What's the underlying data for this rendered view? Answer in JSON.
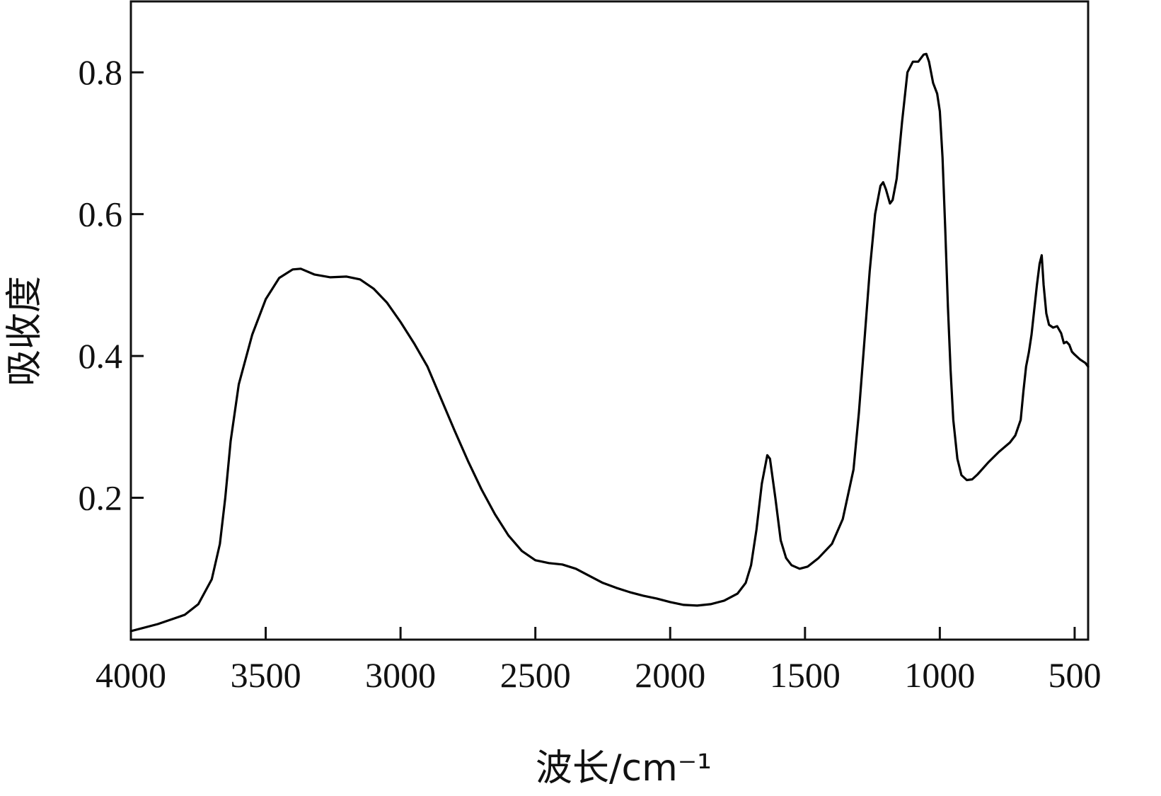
{
  "chart_data": {
    "type": "line",
    "title": "",
    "xlabel": "波长/cm⁻¹",
    "ylabel": "吸收度",
    "xlim": [
      4000,
      450
    ],
    "ylim": [
      0,
      0.9
    ],
    "x_reversed": true,
    "grid": false,
    "x_ticks": [
      4000,
      3500,
      3000,
      2500,
      2000,
      1500,
      1000,
      500
    ],
    "y_ticks": [
      0.2,
      0.4,
      0.6,
      0.8
    ],
    "x_tick_labels": [
      "4000",
      "3500",
      "3000",
      "2500",
      "2000",
      "1500",
      "1000",
      "500"
    ],
    "y_tick_labels": [
      "0.2",
      "0.4",
      "0.6",
      "0.8"
    ],
    "series": [
      {
        "color": "#000000",
        "points": [
          [
            4000,
            0.012
          ],
          [
            3900,
            0.022
          ],
          [
            3800,
            0.035
          ],
          [
            3750,
            0.05
          ],
          [
            3700,
            0.085
          ],
          [
            3670,
            0.135
          ],
          [
            3650,
            0.2
          ],
          [
            3630,
            0.28
          ],
          [
            3600,
            0.36
          ],
          [
            3550,
            0.43
          ],
          [
            3500,
            0.48
          ],
          [
            3450,
            0.51
          ],
          [
            3400,
            0.522
          ],
          [
            3370,
            0.523
          ],
          [
            3320,
            0.515
          ],
          [
            3260,
            0.511
          ],
          [
            3200,
            0.512
          ],
          [
            3150,
            0.508
          ],
          [
            3100,
            0.495
          ],
          [
            3050,
            0.475
          ],
          [
            3000,
            0.448
          ],
          [
            2950,
            0.418
          ],
          [
            2900,
            0.385
          ],
          [
            2850,
            0.34
          ],
          [
            2800,
            0.295
          ],
          [
            2750,
            0.252
          ],
          [
            2700,
            0.212
          ],
          [
            2650,
            0.177
          ],
          [
            2600,
            0.147
          ],
          [
            2550,
            0.125
          ],
          [
            2500,
            0.112
          ],
          [
            2450,
            0.108
          ],
          [
            2400,
            0.106
          ],
          [
            2350,
            0.1
          ],
          [
            2300,
            0.09
          ],
          [
            2250,
            0.08
          ],
          [
            2200,
            0.073
          ],
          [
            2150,
            0.067
          ],
          [
            2100,
            0.062
          ],
          [
            2050,
            0.058
          ],
          [
            2000,
            0.053
          ],
          [
            1950,
            0.049
          ],
          [
            1900,
            0.048
          ],
          [
            1850,
            0.05
          ],
          [
            1800,
            0.055
          ],
          [
            1750,
            0.065
          ],
          [
            1720,
            0.08
          ],
          [
            1700,
            0.105
          ],
          [
            1680,
            0.155
          ],
          [
            1660,
            0.22
          ],
          [
            1640,
            0.26
          ],
          [
            1630,
            0.255
          ],
          [
            1610,
            0.2
          ],
          [
            1590,
            0.14
          ],
          [
            1570,
            0.115
          ],
          [
            1550,
            0.105
          ],
          [
            1520,
            0.1
          ],
          [
            1490,
            0.103
          ],
          [
            1450,
            0.115
          ],
          [
            1400,
            0.135
          ],
          [
            1360,
            0.17
          ],
          [
            1320,
            0.24
          ],
          [
            1300,
            0.32
          ],
          [
            1280,
            0.42
          ],
          [
            1260,
            0.52
          ],
          [
            1240,
            0.6
          ],
          [
            1220,
            0.64
          ],
          [
            1210,
            0.645
          ],
          [
            1200,
            0.635
          ],
          [
            1185,
            0.615
          ],
          [
            1175,
            0.62
          ],
          [
            1160,
            0.65
          ],
          [
            1140,
            0.73
          ],
          [
            1120,
            0.8
          ],
          [
            1100,
            0.815
          ],
          [
            1080,
            0.815
          ],
          [
            1060,
            0.825
          ],
          [
            1050,
            0.826
          ],
          [
            1040,
            0.815
          ],
          [
            1025,
            0.785
          ],
          [
            1010,
            0.77
          ],
          [
            1000,
            0.745
          ],
          [
            990,
            0.68
          ],
          [
            980,
            0.58
          ],
          [
            970,
            0.47
          ],
          [
            960,
            0.38
          ],
          [
            950,
            0.31
          ],
          [
            935,
            0.255
          ],
          [
            920,
            0.232
          ],
          [
            900,
            0.225
          ],
          [
            880,
            0.226
          ],
          [
            860,
            0.233
          ],
          [
            820,
            0.25
          ],
          [
            780,
            0.265
          ],
          [
            740,
            0.278
          ],
          [
            720,
            0.288
          ],
          [
            700,
            0.31
          ],
          [
            690,
            0.35
          ],
          [
            680,
            0.385
          ],
          [
            670,
            0.405
          ],
          [
            660,
            0.43
          ],
          [
            650,
            0.465
          ],
          [
            640,
            0.5
          ],
          [
            630,
            0.53
          ],
          [
            622,
            0.542
          ],
          [
            615,
            0.5
          ],
          [
            605,
            0.46
          ],
          [
            595,
            0.444
          ],
          [
            580,
            0.44
          ],
          [
            565,
            0.442
          ],
          [
            550,
            0.432
          ],
          [
            540,
            0.418
          ],
          [
            530,
            0.42
          ],
          [
            520,
            0.416
          ],
          [
            510,
            0.406
          ],
          [
            500,
            0.402
          ],
          [
            480,
            0.395
          ],
          [
            460,
            0.39
          ],
          [
            450,
            0.385
          ]
        ]
      }
    ]
  }
}
